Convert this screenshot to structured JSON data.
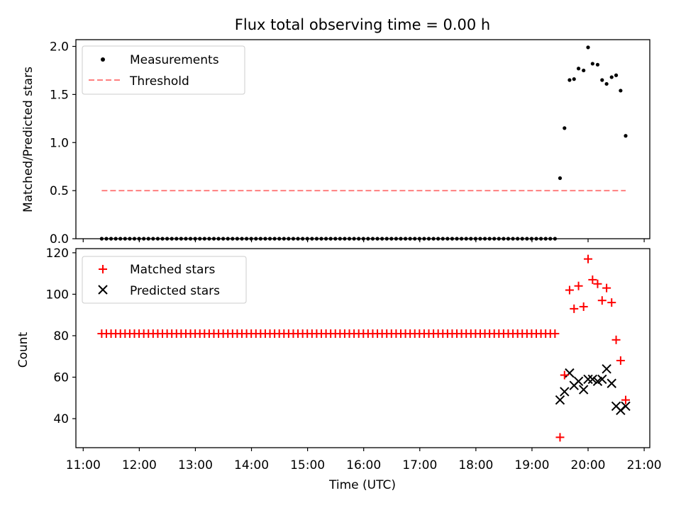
{
  "chart_data": {
    "type": "scatter",
    "title": "Flux total observing time = 0.00 h",
    "xlabel": "Time (UTC)",
    "x_tick_labels": [
      "11:00",
      "12:00",
      "13:00",
      "14:00",
      "15:00",
      "16:00",
      "17:00",
      "18:00",
      "19:00",
      "20:00",
      "21:00"
    ],
    "x_tick_hours": [
      11,
      12,
      13,
      14,
      15,
      16,
      17,
      18,
      19,
      20,
      21
    ],
    "xlim": [
      10.87,
      21.1
    ],
    "panels": [
      {
        "ylabel": "Matched/Predicted stars",
        "ylim": [
          0,
          2.07
        ],
        "y_ticks": [
          0.0,
          0.5,
          1.0,
          1.5,
          2.0
        ],
        "y_tick_labels": [
          "0.0",
          "0.5",
          "1.0",
          "1.5",
          "2.0"
        ],
        "legend": {
          "position": "upper-left",
          "entries": [
            "Measurements",
            "Threshold"
          ]
        },
        "threshold": {
          "name": "Threshold",
          "value": 0.5,
          "x_range": [
            11.33,
            20.67
          ],
          "color": "#ff7f7f"
        },
        "measurements": {
          "name": "Measurements",
          "color": "#000000",
          "zero_series_start": 11.33,
          "zero_series_end": 19.42,
          "zero_series_step": 0.0833,
          "zero_value": 0,
          "x": [
            19.5,
            19.58,
            19.67,
            19.75,
            19.83,
            19.92,
            20.0,
            20.08,
            20.17,
            20.25,
            20.33,
            20.42,
            20.5,
            20.58,
            20.67
          ],
          "y": [
            0.63,
            1.15,
            1.65,
            1.66,
            1.77,
            1.75,
            1.99,
            1.82,
            1.81,
            1.65,
            1.61,
            1.68,
            1.7,
            1.54,
            1.07
          ]
        }
      },
      {
        "ylabel": "Count",
        "ylim": [
          26,
          122
        ],
        "y_ticks": [
          40,
          60,
          80,
          100,
          120
        ],
        "y_tick_labels": [
          "40",
          "60",
          "80",
          "100",
          "120"
        ],
        "legend": {
          "position": "upper-left",
          "entries": [
            "Matched stars",
            "Predicted stars"
          ]
        },
        "matched": {
          "name": "Matched stars",
          "color": "#ff0000",
          "constant_series_start": 11.33,
          "constant_series_end": 19.42,
          "constant_series_step": 0.0833,
          "constant_value": 81,
          "x": [
            19.5,
            19.58,
            19.67,
            19.75,
            19.83,
            19.92,
            20.0,
            20.08,
            20.17,
            20.25,
            20.33,
            20.42,
            20.5,
            20.58,
            20.67
          ],
          "y": [
            31,
            61,
            102,
            93,
            104,
            94,
            117,
            107,
            105,
            97,
            103,
            96,
            78,
            68,
            49
          ]
        },
        "predicted": {
          "name": "Predicted stars",
          "color": "#000000",
          "x": [
            19.5,
            19.58,
            19.67,
            19.75,
            19.83,
            19.92,
            20.0,
            20.08,
            20.17,
            20.25,
            20.33,
            20.42,
            20.5,
            20.58,
            20.67
          ],
          "y": [
            49,
            53,
            62,
            56,
            58,
            54,
            59,
            59,
            58,
            59,
            64,
            57,
            46,
            44,
            46
          ]
        }
      }
    ]
  }
}
